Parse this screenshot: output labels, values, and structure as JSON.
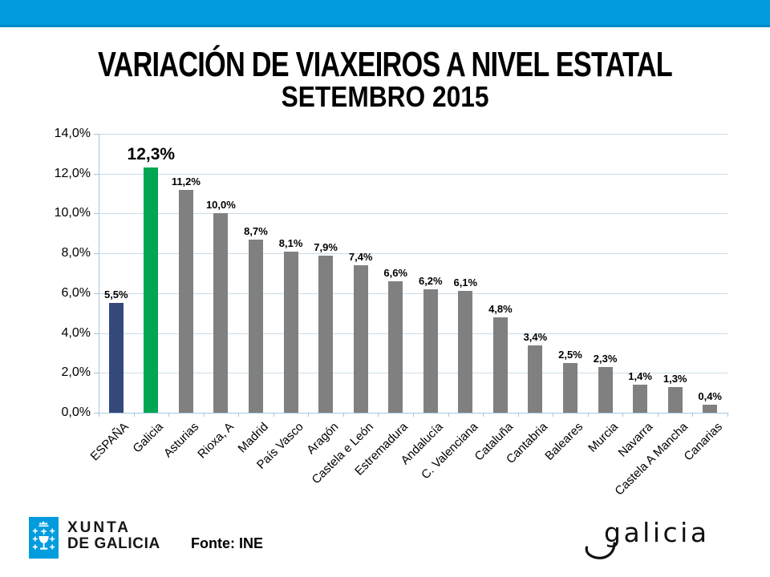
{
  "page": {
    "top_band_color": "#009CDE",
    "background_color": "#FFFFFF"
  },
  "header": {
    "title": "VARIACIÓN DE VIAXEIROS A NIVEL ESTATAL",
    "subtitle": "SETEMBRO 2015"
  },
  "chart_data": {
    "type": "bar",
    "title": "VARIACIÓN DE VIAXEIROS A NIVEL ESTATAL",
    "subtitle": "SETEMBRO 2015",
    "categories": [
      "ESPAÑA",
      "Galicia",
      "Asturias",
      "Rioxa, A",
      "Madrid",
      "País Vasco",
      "Aragón",
      "Castela e León",
      "Estremadura",
      "Andalucía",
      "C. Valenciana",
      "Cataluña",
      "Cantabria",
      "Baleares",
      "Murcia",
      "Navarra",
      "Castela A Mancha",
      "Canarias"
    ],
    "values": [
      5.5,
      12.3,
      11.2,
      10.0,
      8.7,
      8.1,
      7.9,
      7.4,
      6.6,
      6.2,
      6.1,
      4.8,
      3.4,
      2.5,
      2.3,
      1.4,
      1.3,
      0.4
    ],
    "value_labels": [
      "5,5%",
      "12,3%",
      "11,2%",
      "10,0%",
      "8,7%",
      "8,1%",
      "7,9%",
      "7,4%",
      "6,6%",
      "6,2%",
      "6,1%",
      "4,8%",
      "3,4%",
      "2,5%",
      "2,3%",
      "1,4%",
      "1,3%",
      "0,4%"
    ],
    "emphasis_index": 1,
    "ylim": [
      0,
      14
    ],
    "ytick_step": 2,
    "ytick_labels": [
      "0,0%",
      "2,0%",
      "4,0%",
      "6,0%",
      "8,0%",
      "10,0%",
      "12,0%",
      "14,0%"
    ],
    "grid": true,
    "legend": false,
    "xlabel": "",
    "ylabel": "",
    "bar_color_overrides": {
      "0": "#34497A",
      "1": "#00A651"
    },
    "default_bar_color": "#808080",
    "gridline_color": "#C9DCEA",
    "axis_color": "#A5C6DF"
  },
  "footer": {
    "fonte": "Fonte: INE",
    "xunta_logo": {
      "line1": "XUNTA",
      "line2": "DE GALICIA"
    },
    "galicia_logo_text": "galicia"
  }
}
